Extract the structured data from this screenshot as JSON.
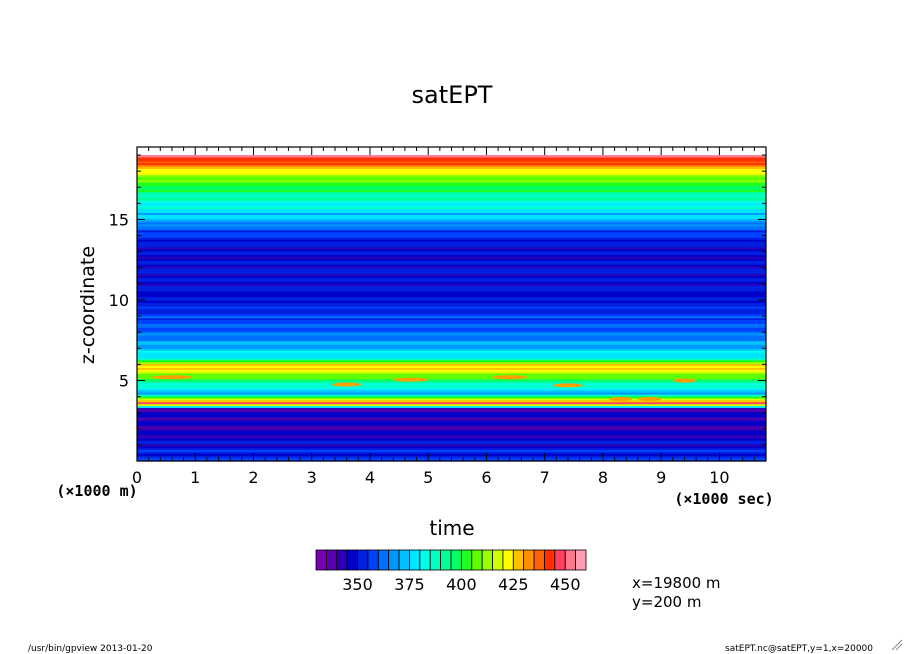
{
  "chart_data": {
    "type": "heatmap",
    "title": "satEPT",
    "xlabel": "time",
    "ylabel": "z-coordinate",
    "x_unit_label": "(×1000 sec)",
    "y_unit_label": "(×1000 m)",
    "xlim": [
      0,
      10.8
    ],
    "ylim": [
      0,
      19.5
    ],
    "x_ticks": [
      "0",
      "1",
      "2",
      "3",
      "4",
      "5",
      "6",
      "7",
      "8",
      "9",
      "10"
    ],
    "y_ticks": [
      "5",
      "10",
      "15"
    ],
    "colorbar": {
      "levels": [
        330,
        335,
        340,
        345,
        350,
        355,
        360,
        365,
        370,
        375,
        380,
        385,
        390,
        395,
        400,
        405,
        410,
        415,
        420,
        425,
        430,
        435,
        440,
        445,
        450,
        455
      ],
      "tick_labels": [
        "350",
        "375",
        "400",
        "425",
        "450"
      ],
      "colors": [
        "#7a00b4",
        "#5a00b0",
        "#2d00b8",
        "#0000c8",
        "#0020e0",
        "#0040ff",
        "#0070ff",
        "#0098ff",
        "#00c0ff",
        "#00e4ff",
        "#00ffe8",
        "#00ffc0",
        "#00ff98",
        "#00ff60",
        "#20ff20",
        "#60ff00",
        "#98ff00",
        "#d0ff00",
        "#ffff00",
        "#ffc000",
        "#ff9000",
        "#ff6000",
        "#ff3000",
        "#ff4060",
        "#ff7890",
        "#ffa0b0"
      ]
    },
    "z_profile": [
      {
        "z": 0.1,
        "v": 355
      },
      {
        "z": 2.0,
        "v": 343
      },
      {
        "z": 3.3,
        "v": 345
      },
      {
        "z": 3.6,
        "v": 451
      },
      {
        "z": 4.2,
        "v": 370
      },
      {
        "z": 5.0,
        "v": 395
      },
      {
        "z": 5.6,
        "v": 420
      },
      {
        "z": 6.0,
        "v": 430
      },
      {
        "z": 6.4,
        "v": 380
      },
      {
        "z": 8.0,
        "v": 362
      },
      {
        "z": 10.0,
        "v": 350
      },
      {
        "z": 13.5,
        "v": 348
      },
      {
        "z": 15.0,
        "v": 370
      },
      {
        "z": 16.5,
        "v": 390
      },
      {
        "z": 17.8,
        "v": 415
      },
      {
        "z": 18.6,
        "v": 440
      },
      {
        "z": 19.0,
        "v": 452
      }
    ]
  },
  "annotations": {
    "x_value": "x=19800 m",
    "y_value": "y=200 m",
    "footer_left": "/usr/bin/gpview  2013-01-20",
    "footer_right": "satEPT.nc@satEPT,y=1,x=20000"
  }
}
